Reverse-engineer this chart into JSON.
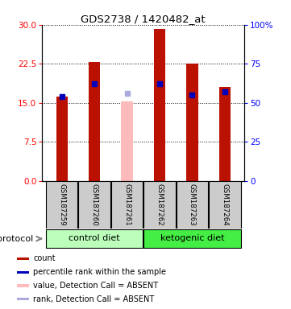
{
  "title": "GDS2738 / 1420482_at",
  "samples": [
    "GSM187259",
    "GSM187260",
    "GSM187261",
    "GSM187262",
    "GSM187263",
    "GSM187264"
  ],
  "red_values": [
    16.2,
    22.8,
    0,
    29.2,
    22.5,
    18.0
  ],
  "blue_values_pct": [
    54.0,
    62.0,
    0,
    62.0,
    55.0,
    57.0
  ],
  "pink_value": 15.2,
  "pink_blue_value_pct": 56.0,
  "absent_sample_idx": 2,
  "left_ylim": [
    0,
    30
  ],
  "right_ylim": [
    0,
    100
  ],
  "left_yticks": [
    0,
    7.5,
    15,
    22.5,
    30
  ],
  "right_yticks": [
    0,
    25,
    50,
    75,
    100
  ],
  "right_yticklabels": [
    "0",
    "25",
    "50",
    "75",
    "100%"
  ],
  "bar_color_red": "#bb1100",
  "bar_color_blue": "#0000bb",
  "bar_color_pink": "#ffbbbb",
  "bar_color_light_blue": "#aaaadd",
  "group1_label": "control diet",
  "group2_label": "ketogenic diet",
  "protocol_label": "protocol",
  "group1_color": "#bbffbb",
  "group2_color": "#44ee44",
  "legend_items": [
    {
      "color": "#bb1100",
      "label": "count"
    },
    {
      "color": "#0000bb",
      "label": "percentile rank within the sample"
    },
    {
      "color": "#ffbbbb",
      "label": "value, Detection Call = ABSENT"
    },
    {
      "color": "#aaaadd",
      "label": "rank, Detection Call = ABSENT"
    }
  ],
  "red_bar_width": 0.35,
  "blue_marker_size": 5.0,
  "pink_bar_width": 0.35
}
